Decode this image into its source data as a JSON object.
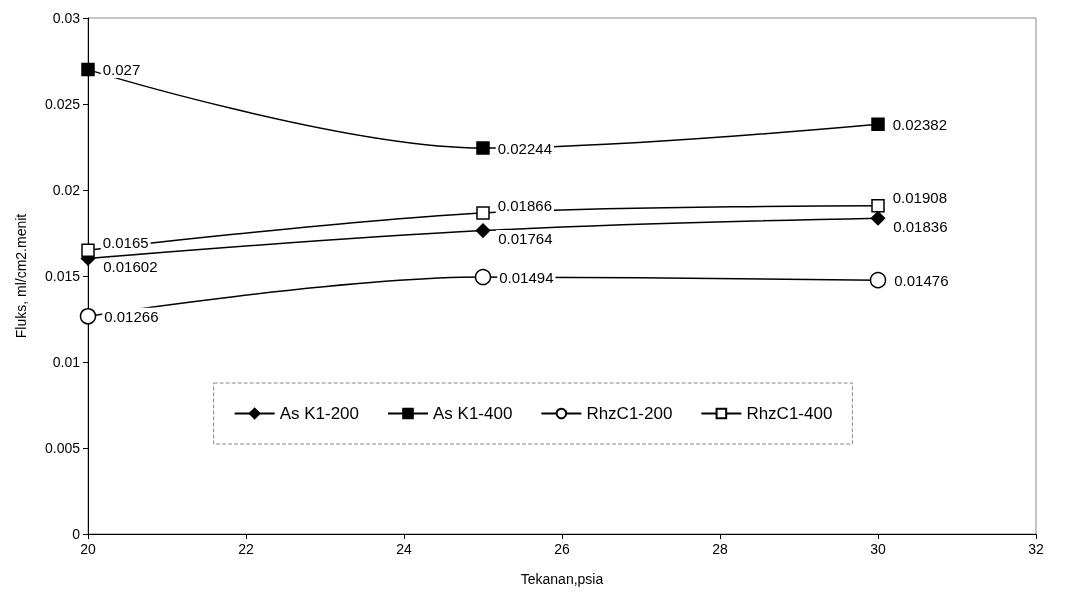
{
  "chart_data": {
    "type": "line",
    "xlabel": "Tekanan,psia",
    "ylabel": "Fluks, ml/cm2.menit",
    "x": [
      20,
      25,
      30
    ],
    "series": [
      {
        "name": "As K1-200",
        "color": "#000000",
        "marker": "diamond",
        "values": [
          0.01602,
          0.01764,
          0.01836
        ]
      },
      {
        "name": "As K1-400",
        "color": "#000000",
        "marker": "square",
        "values": [
          0.027,
          0.02244,
          0.02382
        ]
      },
      {
        "name": "RhzC1-200",
        "color": "#000000",
        "marker": "circle",
        "values": [
          0.01266,
          0.01494,
          0.01476
        ]
      },
      {
        "name": "RhzC1-400",
        "color": "#000000",
        "marker": "square",
        "values": [
          0.0165,
          0.01866,
          0.01908
        ]
      }
    ],
    "xlim": [
      20,
      32
    ],
    "xticks": [
      20,
      22,
      24,
      26,
      28,
      30,
      32
    ],
    "ylim": [
      0,
      0.03
    ],
    "yticks": [
      0,
      0.005,
      0.01,
      0.015,
      0.02,
      0.025,
      0.03
    ],
    "grid": false,
    "legend": "bottom",
    "data_labels": true
  }
}
